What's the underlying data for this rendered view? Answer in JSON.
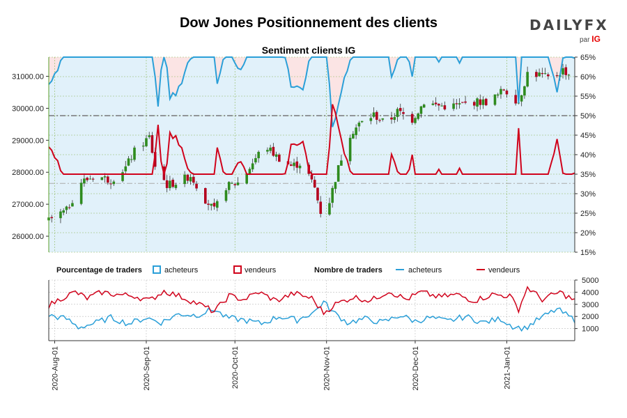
{
  "header": {
    "title": "Dow Jones Positionnement des clients",
    "subtitle": "Sentiment clients IG",
    "logo_text": "DAILYFX",
    "logo_par": "par",
    "logo_ig": "IG"
  },
  "legend": {
    "pct_title": "Pourcentage de traders",
    "pct_buyers": "acheteurs",
    "pct_sellers": "vendeurs",
    "count_title": "Nombre de traders",
    "count_buyers": "acheteurs",
    "count_sellers": "vendeurs"
  },
  "colors": {
    "buyers": "#2a9fd8",
    "sellers": "#d0021b",
    "candle_up": "#2e8b1e",
    "candle_down": "#b4001e",
    "buyer_fill": "#e1f1fa",
    "seller_fill": "#fbe4e4",
    "grid": "#8db85a"
  },
  "chart_data": [
    {
      "type": "candlestick",
      "title": "Sentiment clients IG",
      "x_ticks": [
        "2020-Aug-01",
        "2020-Sep-01",
        "2020-Oct-01",
        "2020-Nov-01",
        "2020-Dec-01",
        "2021-Jan-01"
      ],
      "x_range": [
        "2020-07-30",
        "2021-01-24"
      ],
      "ylim_left": [
        25500,
        31600
      ],
      "yticks_left": [
        "26000.00",
        "27000.00",
        "28000.00",
        "29000.00",
        "30000.00",
        "31000.00"
      ],
      "ylim_right": [
        15,
        65
      ],
      "yticks_right": [
        "15%",
        "20%",
        "25%",
        "30%",
        "35%",
        "40%",
        "45%",
        "50%",
        "55%",
        "60%",
        "65%"
      ],
      "reference_lines": [
        {
          "axis": "right",
          "value": 50
        },
        {
          "axis": "left",
          "value": 27650
        }
      ],
      "price_close_anchors": [
        [
          "2020-07-30",
          26500
        ],
        [
          "2020-08-05",
          26800
        ],
        [
          "2020-08-10",
          27700
        ],
        [
          "2020-08-15",
          27900
        ],
        [
          "2020-08-20",
          27750
        ],
        [
          "2020-08-25",
          28150
        ],
        [
          "2020-08-28",
          28650
        ],
        [
          "2020-09-02",
          29100
        ],
        [
          "2020-09-04",
          28200
        ],
        [
          "2020-09-08",
          27600
        ],
        [
          "2020-09-12",
          27700
        ],
        [
          "2020-09-16",
          27900
        ],
        [
          "2020-09-21",
          27150
        ],
        [
          "2020-09-24",
          26800
        ],
        [
          "2020-09-28",
          27550
        ],
        [
          "2020-10-03",
          27700
        ],
        [
          "2020-10-07",
          28300
        ],
        [
          "2020-10-11",
          28850
        ],
        [
          "2020-10-15",
          28500
        ],
        [
          "2020-10-20",
          28200
        ],
        [
          "2020-10-24",
          28300
        ],
        [
          "2020-10-28",
          27500
        ],
        [
          "2020-10-31",
          26400
        ],
        [
          "2020-11-04",
          27800
        ],
        [
          "2020-11-08",
          29100
        ],
        [
          "2020-11-12",
          29500
        ],
        [
          "2020-11-17",
          29800
        ],
        [
          "2020-11-21",
          29500
        ],
        [
          "2020-11-25",
          29900
        ],
        [
          "2020-11-30",
          29650
        ],
        [
          "2020-12-04",
          30200
        ],
        [
          "2020-12-08",
          30100
        ],
        [
          "2020-12-12",
          30050
        ],
        [
          "2020-12-16",
          30100
        ],
        [
          "2020-12-21",
          30200
        ],
        [
          "2020-12-25",
          30200
        ],
        [
          "2020-12-29",
          30400
        ],
        [
          "2020-12-31",
          30600
        ],
        [
          "2021-01-05",
          30200
        ],
        [
          "2021-01-08",
          31100
        ],
        [
          "2021-01-12",
          31050
        ],
        [
          "2021-01-16",
          30900
        ],
        [
          "2021-01-20",
          31200
        ],
        [
          "2021-01-23",
          31000
        ]
      ],
      "sellers_pct_anchors": [
        [
          "2020-07-30",
          42
        ],
        [
          "2020-08-02",
          39
        ],
        [
          "2020-08-04",
          33
        ],
        [
          "2020-08-06",
          26
        ],
        [
          "2020-08-08",
          23
        ],
        [
          "2020-08-11",
          29
        ],
        [
          "2020-08-14",
          33
        ],
        [
          "2020-08-18",
          27
        ],
        [
          "2020-08-22",
          31
        ],
        [
          "2020-08-26",
          24
        ],
        [
          "2020-08-30",
          33
        ],
        [
          "2020-09-02",
          24
        ],
        [
          "2020-09-05",
          48
        ],
        [
          "2020-09-07",
          30
        ],
        [
          "2020-09-09",
          46
        ],
        [
          "2020-09-12",
          43
        ],
        [
          "2020-09-15",
          37
        ],
        [
          "2020-09-19",
          30
        ],
        [
          "2020-09-23",
          24
        ],
        [
          "2020-09-25",
          42
        ],
        [
          "2020-09-28",
          32
        ],
        [
          "2020-10-02",
          38
        ],
        [
          "2020-10-04",
          37
        ],
        [
          "2020-10-08",
          23
        ],
        [
          "2020-10-12",
          34
        ],
        [
          "2020-10-16",
          27
        ],
        [
          "2020-10-20",
          43
        ],
        [
          "2020-10-24",
          43
        ],
        [
          "2020-10-28",
          30
        ],
        [
          "2020-10-31",
          17
        ],
        [
          "2020-11-03",
          53
        ],
        [
          "2020-11-06",
          44
        ],
        [
          "2020-11-09",
          35
        ],
        [
          "2020-11-13",
          30
        ],
        [
          "2020-11-17",
          34
        ],
        [
          "2020-11-20",
          26
        ],
        [
          "2020-11-23",
          40
        ],
        [
          "2020-11-27",
          30
        ],
        [
          "2020-11-30",
          40
        ],
        [
          "2020-12-03",
          24
        ],
        [
          "2020-12-06",
          31
        ],
        [
          "2020-12-09",
          36
        ],
        [
          "2020-12-12",
          24
        ],
        [
          "2020-12-16",
          36
        ],
        [
          "2020-12-19",
          32
        ],
        [
          "2020-12-22",
          22
        ],
        [
          "2020-12-26",
          26
        ],
        [
          "2020-12-30",
          35
        ],
        [
          "2021-01-03",
          23
        ],
        [
          "2021-01-05",
          46
        ],
        [
          "2021-01-07",
          18
        ],
        [
          "2021-01-09",
          25
        ],
        [
          "2021-01-13",
          27
        ],
        [
          "2021-01-16",
          37
        ],
        [
          "2021-01-18",
          44
        ],
        [
          "2021-01-21",
          30
        ],
        [
          "2021-01-24",
          35
        ]
      ],
      "buyers_pct_rule": "buyers = 100 - sellers"
    },
    {
      "type": "line",
      "title": "",
      "ylim": [
        0,
        5000
      ],
      "yticks": [
        "1000",
        "2000",
        "3000",
        "4000",
        "5000"
      ],
      "series": [
        {
          "name": "acheteurs",
          "anchors": [
            [
              "2020-07-30",
              2100
            ],
            [
              "2020-08-05",
              1800
            ],
            [
              "2020-08-09",
              1100
            ],
            [
              "2020-08-14",
              1400
            ],
            [
              "2020-08-20",
              1900
            ],
            [
              "2020-08-26",
              1400
            ],
            [
              "2020-09-01",
              1900
            ],
            [
              "2020-09-06",
              1500
            ],
            [
              "2020-09-12",
              2200
            ],
            [
              "2020-09-18",
              2100
            ],
            [
              "2020-09-24",
              2600
            ],
            [
              "2020-09-28",
              1900
            ],
            [
              "2020-10-04",
              1700
            ],
            [
              "2020-10-10",
              1400
            ],
            [
              "2020-10-16",
              2000
            ],
            [
              "2020-10-22",
              1700
            ],
            [
              "2020-10-28",
              2400
            ],
            [
              "2020-10-31",
              3200
            ],
            [
              "2020-11-03",
              2400
            ],
            [
              "2020-11-08",
              1500
            ],
            [
              "2020-11-14",
              1800
            ],
            [
              "2020-11-20",
              1500
            ],
            [
              "2020-11-26",
              2100
            ],
            [
              "2020-12-01",
              1600
            ],
            [
              "2020-12-06",
              1900
            ],
            [
              "2020-12-12",
              1600
            ],
            [
              "2020-12-18",
              2000
            ],
            [
              "2020-12-24",
              1500
            ],
            [
              "2020-12-30",
              1800
            ],
            [
              "2021-01-03",
              1200
            ],
            [
              "2021-01-07",
              1000
            ],
            [
              "2021-01-12",
              1800
            ],
            [
              "2021-01-18",
              2600
            ],
            [
              "2021-01-24",
              1700
            ]
          ]
        },
        {
          "name": "vendeurs",
          "anchors": [
            [
              "2020-07-30",
              2900
            ],
            [
              "2020-08-04",
              3600
            ],
            [
              "2020-08-08",
              4000
            ],
            [
              "2020-08-12",
              3500
            ],
            [
              "2020-08-17",
              4000
            ],
            [
              "2020-08-22",
              3800
            ],
            [
              "2020-08-28",
              3700
            ],
            [
              "2020-09-02",
              3300
            ],
            [
              "2020-09-07",
              4100
            ],
            [
              "2020-09-13",
              3600
            ],
            [
              "2020-09-19",
              3000
            ],
            [
              "2020-09-24",
              2400
            ],
            [
              "2020-09-29",
              3700
            ],
            [
              "2020-10-04",
              3400
            ],
            [
              "2020-10-09",
              4000
            ],
            [
              "2020-10-15",
              3300
            ],
            [
              "2020-10-21",
              3900
            ],
            [
              "2020-10-27",
              3500
            ],
            [
              "2020-10-31",
              2300
            ],
            [
              "2020-11-04",
              3000
            ],
            [
              "2020-11-10",
              3600
            ],
            [
              "2020-11-16",
              3300
            ],
            [
              "2020-11-22",
              4100
            ],
            [
              "2020-11-28",
              3400
            ],
            [
              "2020-12-03",
              4000
            ],
            [
              "2020-12-09",
              3600
            ],
            [
              "2020-12-15",
              3800
            ],
            [
              "2020-12-21",
              3300
            ],
            [
              "2020-12-27",
              3800
            ],
            [
              "2021-01-02",
              3700
            ],
            [
              "2021-01-05",
              2600
            ],
            [
              "2021-01-08",
              4400
            ],
            [
              "2021-01-13",
              3400
            ],
            [
              "2021-01-19",
              4000
            ],
            [
              "2021-01-24",
              3300
            ]
          ]
        }
      ]
    }
  ]
}
